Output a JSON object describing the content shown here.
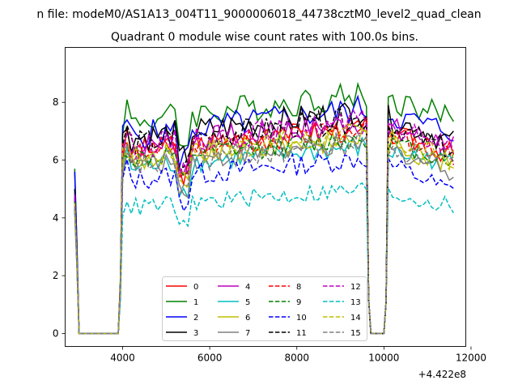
{
  "chart_data": {
    "type": "line",
    "suptitle": "n file: modeM0/AS1A13_004T11_9000006018_44738cztM0_level2_quad_clean",
    "title": "Quadrant 0 module wise count rates with 100.0s bins.",
    "xlabel": "",
    "ylabel": "",
    "x_offset_label": "+4.422e8",
    "xlim": [
      2680,
      11880
    ],
    "ylim": [
      -0.45,
      9.9
    ],
    "xticks": [
      4000,
      6000,
      8000,
      10000,
      12000
    ],
    "yticks": [
      0,
      2,
      4,
      6,
      8
    ],
    "legend_position": "lower-center",
    "segments": [
      [
        2900,
        3000
      ],
      [
        4000,
        9600
      ],
      [
        10100,
        11600
      ]
    ],
    "gap_value": 0,
    "series": [
      {
        "name": "0",
        "color": "#ff0000",
        "dash": "solid",
        "start": 4.5,
        "level": 6.6,
        "amp": 0.4,
        "end": 6.2
      },
      {
        "name": "1",
        "color": "#008000",
        "dash": "solid",
        "start": 5.7,
        "level": 7.7,
        "amp": 0.45,
        "end": 7.5
      },
      {
        "name": "2",
        "color": "#0000ff",
        "dash": "solid",
        "start": 5.6,
        "level": 7.2,
        "amp": 0.45,
        "end": 7.0
      },
      {
        "name": "3",
        "color": "#000000",
        "dash": "solid",
        "start": 5.0,
        "level": 7.1,
        "amp": 0.45,
        "end": 6.6
      },
      {
        "name": "4",
        "color": "#bf00bf",
        "dash": "solid",
        "start": 4.8,
        "level": 6.8,
        "amp": 0.4,
        "end": 6.6
      },
      {
        "name": "5",
        "color": "#00bfbf",
        "dash": "solid",
        "start": 4.6,
        "level": 6.0,
        "amp": 0.35,
        "end": 5.9
      },
      {
        "name": "6",
        "color": "#bfbf00",
        "dash": "solid",
        "start": 4.5,
        "level": 6.3,
        "amp": 0.4,
        "end": 5.8
      },
      {
        "name": "7",
        "color": "#808080",
        "dash": "solid",
        "start": 4.4,
        "level": 6.1,
        "amp": 0.35,
        "end": 5.6
      },
      {
        "name": "8",
        "color": "#ff0000",
        "dash": "dashed",
        "start": 4.6,
        "level": 6.6,
        "amp": 0.4,
        "end": 6.2
      },
      {
        "name": "9",
        "color": "#008000",
        "dash": "dashed",
        "start": 4.6,
        "level": 6.3,
        "amp": 0.35,
        "end": 6.0
      },
      {
        "name": "10",
        "color": "#0000ff",
        "dash": "dashed",
        "start": 4.3,
        "level": 5.6,
        "amp": 0.35,
        "end": 4.9
      },
      {
        "name": "11",
        "color": "#000000",
        "dash": "dashed",
        "start": 4.7,
        "level": 6.9,
        "amp": 0.4,
        "end": 6.3
      },
      {
        "name": "12",
        "color": "#bf00bf",
        "dash": "dashed",
        "start": 4.7,
        "level": 6.8,
        "amp": 0.4,
        "end": 6.4
      },
      {
        "name": "13",
        "color": "#00bfbf",
        "dash": "dashed",
        "start": 4.2,
        "level": 4.6,
        "amp": 0.3,
        "end": 4.4
      },
      {
        "name": "14",
        "color": "#bfbf00",
        "dash": "dashed",
        "start": 4.5,
        "level": 6.4,
        "amp": 0.4,
        "end": 6.0
      },
      {
        "name": "15",
        "color": "#808080",
        "dash": "dashed",
        "start": 4.4,
        "level": 6.1,
        "amp": 0.4,
        "end": 5.9
      }
    ]
  }
}
